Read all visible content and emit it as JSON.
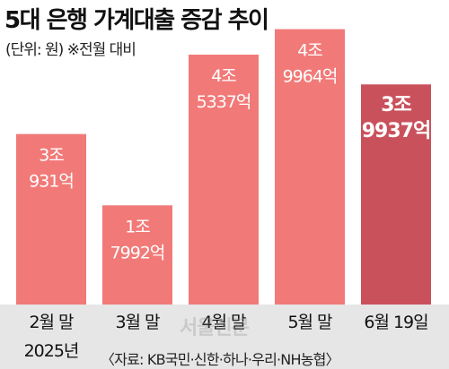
{
  "title": "5대 은행 가계대출 증감 추이",
  "subtitle": "(단위: 원) ※전월 대비",
  "watermark": "서울신문",
  "source": "〈자료: KB국민·신한·하나·우리·NH농협〉",
  "chart_data": {
    "type": "bar",
    "categories": [
      "2월 말",
      "3월 말",
      "4월 말",
      "5월 말",
      "6월 19일"
    ],
    "category_sublabels": [
      "2025년",
      "",
      "",
      "",
      ""
    ],
    "values": [
      30931,
      17992,
      45337,
      49964,
      39937
    ],
    "unit": "억 원",
    "value_labels": [
      [
        "3조",
        "931억"
      ],
      [
        "1조",
        "7992억"
      ],
      [
        "4조",
        "5337억"
      ],
      [
        "4조",
        "9964억"
      ],
      [
        "3조",
        "9937억"
      ]
    ],
    "highlight_index": 4,
    "colors": {
      "bar": "#f17a78",
      "bar_highlight": "#c9515c",
      "label": "#ffffff",
      "baseline_band": "#e6e6e6",
      "axis_text": "#111111"
    },
    "ylim": [
      0,
      52000
    ],
    "grid": false,
    "legend": "none"
  }
}
